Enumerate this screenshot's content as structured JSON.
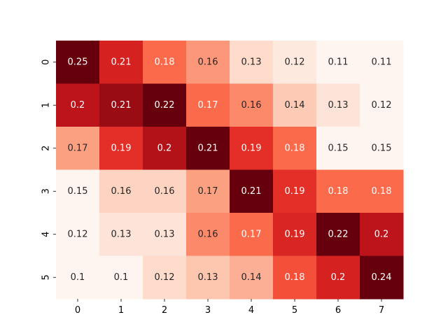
{
  "chart_data": {
    "type": "heatmap",
    "title": "",
    "xlabel": "",
    "ylabel": "",
    "x_categories": [
      "0",
      "1",
      "2",
      "3",
      "4",
      "5",
      "6",
      "7"
    ],
    "y_categories": [
      "0",
      "1",
      "2",
      "3",
      "4",
      "5"
    ],
    "values": [
      [
        0.25,
        0.21,
        0.18,
        0.16,
        0.13,
        0.12,
        0.11,
        0.11
      ],
      [
        0.2,
        0.21,
        0.22,
        0.17,
        0.16,
        0.14,
        0.13,
        0.12
      ],
      [
        0.17,
        0.19,
        0.2,
        0.21,
        0.19,
        0.18,
        0.15,
        0.15
      ],
      [
        0.15,
        0.16,
        0.16,
        0.17,
        0.21,
        0.19,
        0.18,
        0.18
      ],
      [
        0.12,
        0.13,
        0.13,
        0.16,
        0.17,
        0.19,
        0.22,
        0.2
      ],
      [
        0.1,
        0.1,
        0.12,
        0.13,
        0.14,
        0.18,
        0.2,
        0.24
      ]
    ],
    "colormap": "Reds",
    "colorbar": false,
    "annotations": true,
    "row_vmin": [
      0.11,
      0.12,
      0.15,
      0.15,
      0.12,
      0.1
    ],
    "row_vmax": [
      0.25,
      0.22,
      0.21,
      0.21,
      0.22,
      0.24
    ]
  }
}
